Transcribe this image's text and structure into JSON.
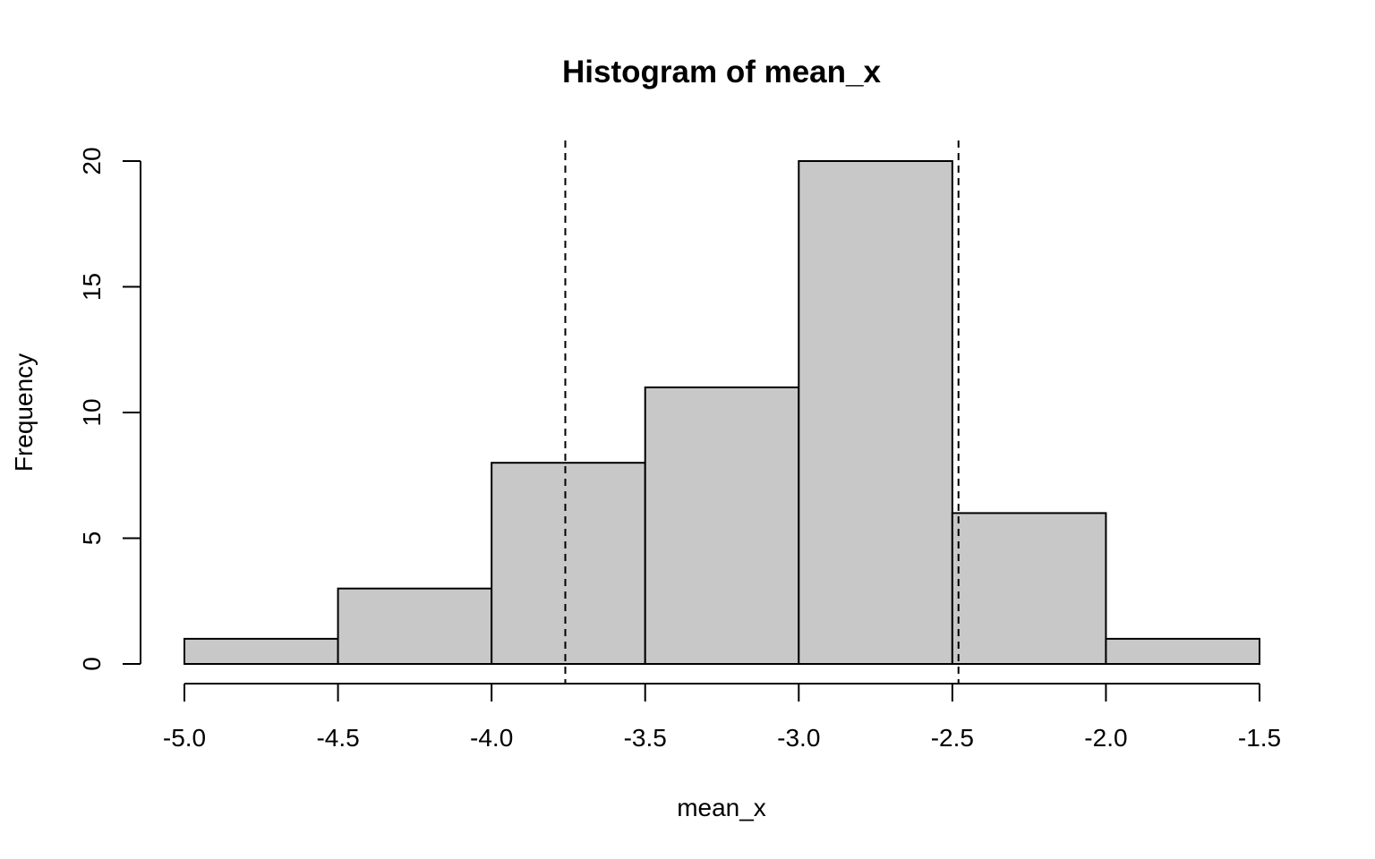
{
  "chart_data": {
    "type": "bar",
    "title": "Histogram of mean_x",
    "xlabel": "mean_x",
    "ylabel": "Frequency",
    "bins": [
      {
        "start": -5.0,
        "end": -4.5,
        "count": 1
      },
      {
        "start": -4.5,
        "end": -4.0,
        "count": 3
      },
      {
        "start": -4.0,
        "end": -3.5,
        "count": 8
      },
      {
        "start": -3.5,
        "end": -3.0,
        "count": 11
      },
      {
        "start": -3.0,
        "end": -2.5,
        "count": 20
      },
      {
        "start": -2.5,
        "end": -2.0,
        "count": 6
      },
      {
        "start": -2.0,
        "end": -1.5,
        "count": 1
      }
    ],
    "xlim": [
      -5.0,
      -1.5
    ],
    "ylim": [
      0,
      20
    ],
    "x_ticks": [
      -5.0,
      -4.5,
      -4.0,
      -3.5,
      -3.0,
      -2.5,
      -2.0,
      -1.5
    ],
    "x_tick_labels": [
      "-5.0",
      "-4.5",
      "-4.0",
      "-3.5",
      "-3.0",
      "-2.5",
      "-2.0",
      "-1.5"
    ],
    "y_ticks": [
      0,
      5,
      10,
      15,
      20
    ],
    "y_tick_labels": [
      "0",
      "5",
      "10",
      "15",
      "20"
    ],
    "reference_lines": [
      {
        "x": -3.76,
        "style": "dashed"
      },
      {
        "x": -2.48,
        "style": "dashed"
      }
    ],
    "bar_fill": "#c8c8c8",
    "bar_stroke": "#000000",
    "grid": false,
    "legend": "none"
  }
}
